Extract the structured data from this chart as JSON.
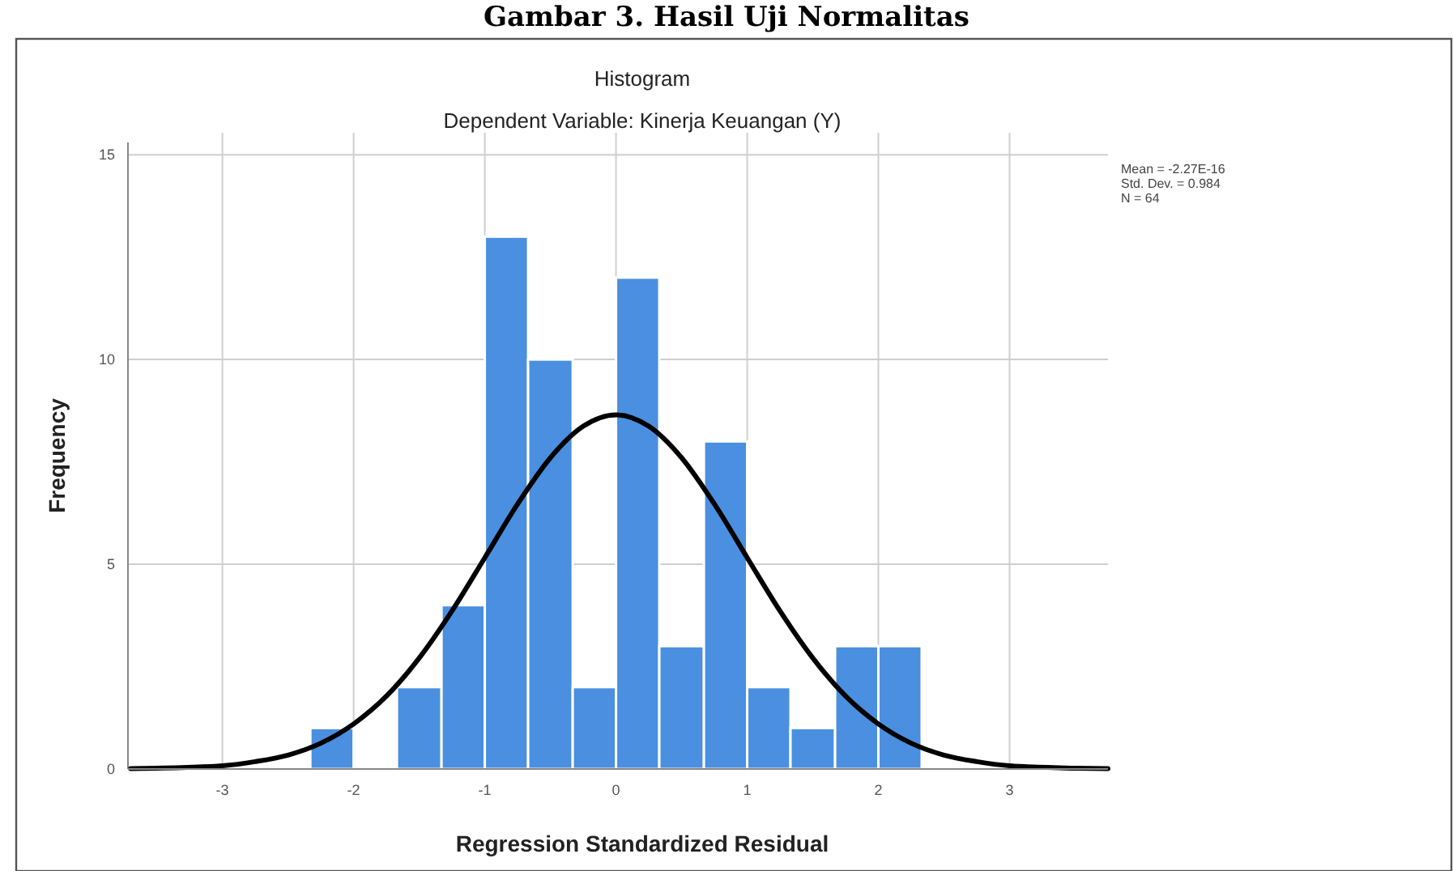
{
  "chart_data": {
    "type": "histogram",
    "title": "Histogram",
    "subtitle": "Dependent Variable: Kinerja Keuangan (Y)",
    "xlabel": "Regression Standardized Residual",
    "ylabel": "Frequency",
    "bins": [
      -2.33,
      -2,
      -1.67,
      -1.33,
      -1,
      -0.67,
      -0.33,
      0,
      0.33,
      0.67,
      1,
      1.33,
      1.67,
      2,
      2.33
    ],
    "series": [
      {
        "color": "#4a8fe0",
        "values": [
          1,
          0,
          2,
          4,
          13,
          10,
          2,
          12,
          3,
          8,
          2,
          1,
          3,
          3
        ]
      },
      {
        "type": "line",
        "color": "#000000",
        "x": [
          -3.7,
          -3.5,
          -3,
          -2.75,
          -2.5,
          -2.25,
          -2,
          -1.75,
          -1.5,
          -1.25,
          -1,
          -0.75,
          -0.5,
          -0.25,
          0,
          0.25,
          0.5,
          0.75,
          1,
          1.25,
          1.5,
          1.75,
          2,
          2.25,
          2.5,
          2.75,
          3,
          3.5,
          3.75
        ],
        "values": [
          0.01,
          0.02,
          0.08,
          0.18,
          0.34,
          0.63,
          1.1,
          1.78,
          2.71,
          3.86,
          5.16,
          6.47,
          7.6,
          8.37,
          8.65,
          8.37,
          7.6,
          6.47,
          5.16,
          3.86,
          2.71,
          1.78,
          1.1,
          0.63,
          0.34,
          0.18,
          0.08,
          0.02,
          0.01
        ]
      }
    ],
    "xlim": [
      -3.72,
      3.75
    ],
    "ylim": [
      0,
      15.3
    ],
    "xticks": [
      -3,
      -2,
      -1,
      0,
      1,
      2,
      3
    ],
    "yticks": [
      0,
      5,
      10,
      15
    ],
    "grid": true,
    "annotations": [
      "Gambar 3. Hasil Uji Normalitas",
      "Mean = -2.27E-16",
      "Std. Dev. = 0.984",
      "N = 64"
    ]
  }
}
